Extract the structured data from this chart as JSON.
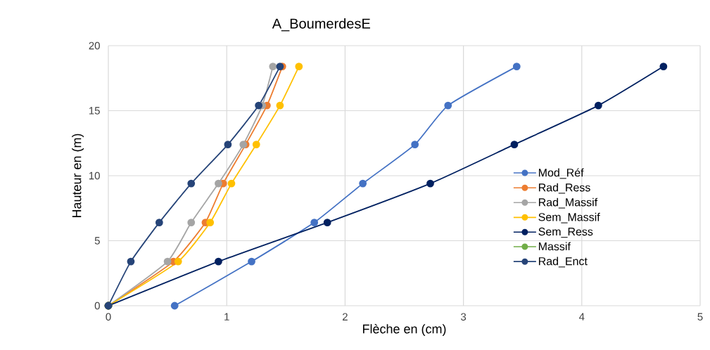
{
  "chart_data": {
    "type": "line",
    "title": "A_BoumerdesE",
    "xlabel": "Flèche en (cm)",
    "ylabel": "Hauteur en (m)",
    "xlim": [
      0,
      5
    ],
    "ylim": [
      0,
      20
    ],
    "xticks": [
      0,
      1,
      2,
      3,
      4,
      5
    ],
    "yticks": [
      0,
      5,
      10,
      15,
      20
    ],
    "grid": true,
    "legend": "right",
    "marker": "circle",
    "series": [
      {
        "name": "Mod_Réf",
        "color": "#4472c4",
        "x": [
          0.56,
          1.21,
          1.74,
          2.15,
          2.59,
          2.87,
          3.45
        ],
        "values": [
          0,
          3.4,
          6.4,
          9.4,
          12.4,
          15.4,
          18.4
        ]
      },
      {
        "name": "Rad_Ress",
        "color": "#ed7d31",
        "x": [
          0,
          0.55,
          0.82,
          0.97,
          1.16,
          1.34,
          1.47
        ],
        "values": [
          0,
          3.4,
          6.4,
          9.4,
          12.4,
          15.4,
          18.4
        ]
      },
      {
        "name": "Rad_Massif",
        "color": "#a5a5a5",
        "x": [
          0,
          0.5,
          0.7,
          0.93,
          1.14,
          1.3,
          1.39
        ],
        "values": [
          0,
          3.4,
          6.4,
          9.4,
          12.4,
          15.4,
          18.4
        ]
      },
      {
        "name": "Sem_Massif",
        "color": "#ffc000",
        "x": [
          0,
          0.59,
          0.86,
          1.04,
          1.25,
          1.45,
          1.61
        ],
        "values": [
          0,
          3.4,
          6.4,
          9.4,
          12.4,
          15.4,
          18.4
        ]
      },
      {
        "name": "Sem_Ress",
        "color": "#002060",
        "x": [
          0,
          0.93,
          1.85,
          2.72,
          3.43,
          4.14,
          4.69
        ],
        "values": [
          0,
          3.4,
          6.4,
          9.4,
          12.4,
          15.4,
          18.4
        ]
      },
      {
        "name": "Massif",
        "color": "#70ad47",
        "x": [
          0
        ],
        "values": [
          0
        ]
      },
      {
        "name": "Rad_Enct",
        "color": "#264478",
        "x": [
          0,
          0.19,
          0.43,
          0.7,
          1.01,
          1.27,
          1.45
        ],
        "values": [
          0,
          3.4,
          6.4,
          9.4,
          12.4,
          15.4,
          18.4
        ]
      }
    ]
  }
}
